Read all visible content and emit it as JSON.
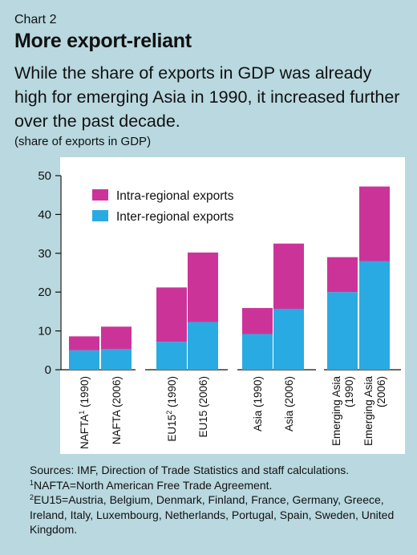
{
  "header": {
    "chart_label": "Chart 2",
    "title": "More export-reliant",
    "subtitle": "While the share of exports in GDP was already high for emerging Asia in 1990, it increased further over the past decade.",
    "units": "(share of exports in GDP)"
  },
  "colors": {
    "background": "#b9d8e0",
    "plot_background": "#ffffff",
    "intra": "#cc3399",
    "inter": "#2aaae2"
  },
  "chart_data": {
    "type": "bar",
    "stacked": true,
    "categories": [
      [
        "NAFTA",
        "1",
        " (1990)"
      ],
      [
        "NAFTA (2006)"
      ],
      [
        "EU15",
        "2",
        " (1990)"
      ],
      [
        "EU15 (2006)"
      ],
      [
        "Asia (1990)"
      ],
      [
        "Asia (2006)"
      ],
      [
        "Emerging Asia",
        "(1990)"
      ],
      [
        "Emerging Asia",
        "(2006)"
      ]
    ],
    "groups": [
      [
        0,
        1
      ],
      [
        2,
        3
      ],
      [
        4,
        5
      ],
      [
        6,
        7
      ]
    ],
    "series": [
      {
        "name": "Inter-regional exports",
        "color": "#2aaae2",
        "values": [
          5,
          5.3,
          7.2,
          12.3,
          9.2,
          15.7,
          20,
          28
        ]
      },
      {
        "name": "Intra-regional exports",
        "color": "#cc3399",
        "values": [
          3.6,
          5.8,
          14,
          17.9,
          6.7,
          16.8,
          9,
          19.2
        ]
      }
    ],
    "legend": [
      "Intra-regional exports",
      "Inter-regional exports"
    ],
    "legend_position": "top-left",
    "ylim": [
      0,
      50
    ],
    "yticks": [
      0,
      10,
      20,
      30,
      40,
      50
    ],
    "grid": false
  },
  "footnotes": {
    "sources": "Sources: IMF, Direction of Trade Statistics and staff calculations.",
    "note1_mark": "1",
    "note1": "NAFTA=North American Free Trade Agreement.",
    "note2_mark": "2",
    "note2": "EU15=Austria, Belgium, Denmark, Finland, France, Germany, Greece, Ireland, Italy, Luxembourg, Netherlands, Portugal, Spain, Sweden, United Kingdom."
  }
}
